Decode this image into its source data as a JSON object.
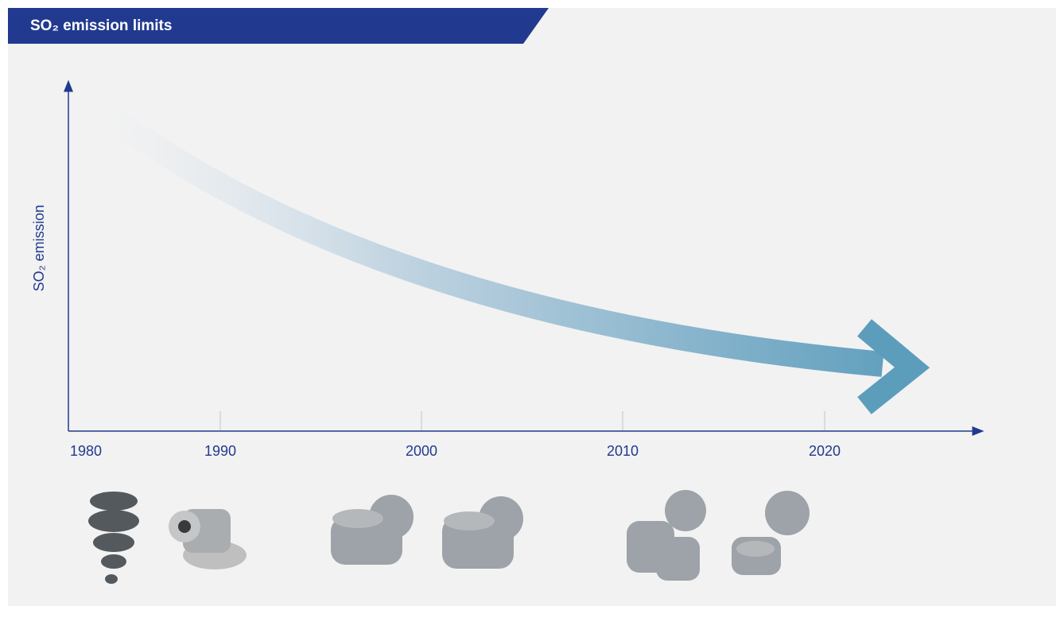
{
  "header": {
    "title": "SO₂ emission limits"
  },
  "axis": {
    "y_label": "SO₂ emission",
    "x_labels": [
      "1980",
      "1990",
      "2000",
      "2010",
      "2020"
    ]
  }
}
